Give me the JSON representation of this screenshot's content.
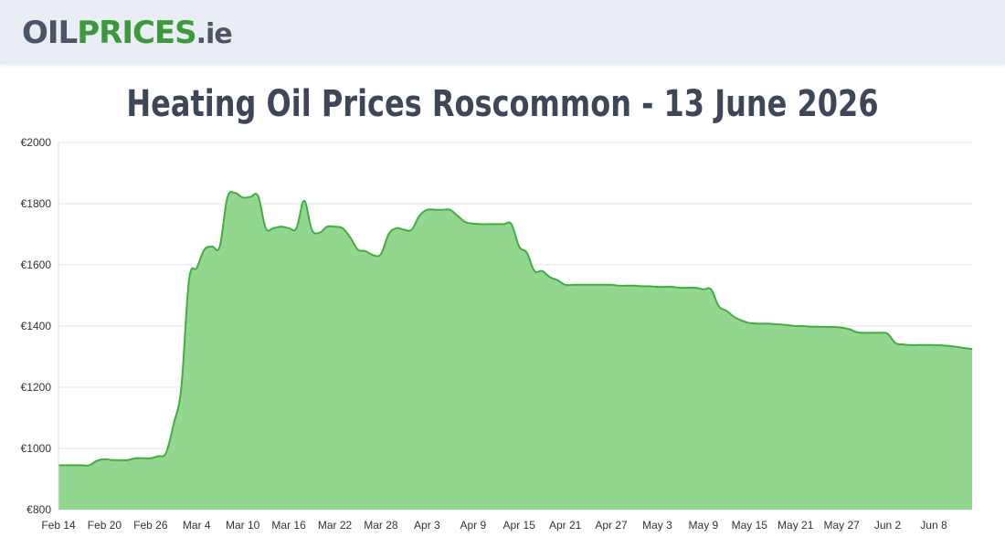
{
  "header": {
    "logo_part1": "OIL",
    "logo_part2": "PRICES",
    "logo_part3": ".ie"
  },
  "colors": {
    "fill": "#92d690",
    "line": "#42ae42",
    "grid": "#e6e6e6"
  },
  "chart_data": {
    "type": "area",
    "title": "Heating Oil Prices Roscommon - 13 June 2026",
    "xlabel": "",
    "ylabel": "",
    "ylim": [
      800,
      2000
    ],
    "y_ticks": [
      800,
      1000,
      1200,
      1400,
      1600,
      1800,
      2000
    ],
    "y_tick_labels": [
      "€800",
      "€1000",
      "€1200",
      "€1400",
      "€1600",
      "€1800",
      "€2000"
    ],
    "x_ticks": [
      "Feb 14",
      "Feb 20",
      "Feb 26",
      "Mar 4",
      "Mar 10",
      "Mar 16",
      "Mar 22",
      "Mar 28",
      "Apr 3",
      "Apr 9",
      "Apr 15",
      "Apr 21",
      "Apr 27",
      "May 3",
      "May 9",
      "May 15",
      "May 21",
      "May 27",
      "Jun 2",
      "Jun 8"
    ],
    "grid": true,
    "x": [
      "Feb 14",
      "Feb 15",
      "Feb 16",
      "Feb 17",
      "Feb 18",
      "Feb 19",
      "Feb 20",
      "Feb 21",
      "Feb 22",
      "Feb 23",
      "Feb 24",
      "Feb 25",
      "Feb 26",
      "Feb 27",
      "Feb 28",
      "Mar 1",
      "Mar 2",
      "Mar 3",
      "Mar 4",
      "Mar 5",
      "Mar 6",
      "Mar 7",
      "Mar 8",
      "Mar 9",
      "Mar 10",
      "Mar 11",
      "Mar 12",
      "Mar 13",
      "Mar 14",
      "Mar 15",
      "Mar 16",
      "Mar 17",
      "Mar 18",
      "Mar 19",
      "Mar 20",
      "Mar 21",
      "Mar 22",
      "Mar 23",
      "Mar 24",
      "Mar 25",
      "Mar 26",
      "Mar 27",
      "Mar 28",
      "Mar 29",
      "Mar 30",
      "Mar 31",
      "Apr 1",
      "Apr 2",
      "Apr 3",
      "Apr 4",
      "Apr 5",
      "Apr 6",
      "Apr 7",
      "Apr 8",
      "Apr 9",
      "Apr 10",
      "Apr 11",
      "Apr 12",
      "Apr 13",
      "Apr 14",
      "Apr 15",
      "Apr 16",
      "Apr 17",
      "Apr 18",
      "Apr 19",
      "Apr 20",
      "Apr 21",
      "Apr 22",
      "Apr 23",
      "Apr 24",
      "Apr 25",
      "Apr 26",
      "Apr 27",
      "Apr 28",
      "Apr 29",
      "Apr 30",
      "May 1",
      "May 2",
      "May 3",
      "May 4",
      "May 5",
      "May 6",
      "May 7",
      "May 8",
      "May 9",
      "May 10",
      "May 11",
      "May 12",
      "May 13",
      "May 14",
      "May 15",
      "May 16",
      "May 17",
      "May 18",
      "May 19",
      "May 20",
      "May 21",
      "May 22",
      "May 23",
      "May 24",
      "May 25",
      "May 26",
      "May 27",
      "May 28",
      "May 29",
      "May 30",
      "May 31",
      "Jun 1",
      "Jun 2",
      "Jun 3",
      "Jun 4",
      "Jun 5",
      "Jun 6",
      "Jun 7",
      "Jun 8",
      "Jun 9",
      "Jun 10",
      "Jun 11",
      "Jun 12",
      "Jun 13"
    ],
    "series": [
      {
        "values": [
          945,
          945,
          945,
          945,
          945,
          960,
          965,
          962,
          962,
          962,
          968,
          968,
          968,
          975,
          985,
          1080,
          1200,
          1550,
          1590,
          1650,
          1660,
          1660,
          1820,
          1835,
          1820,
          1822,
          1825,
          1720,
          1720,
          1725,
          1720,
          1720,
          1810,
          1715,
          1705,
          1725,
          1725,
          1720,
          1690,
          1650,
          1645,
          1632,
          1635,
          1700,
          1720,
          1715,
          1715,
          1760,
          1780,
          1780,
          1780,
          1780,
          1760,
          1740,
          1735,
          1733,
          1733,
          1733,
          1733,
          1733,
          1660,
          1640,
          1580,
          1580,
          1560,
          1550,
          1535,
          1535,
          1535,
          1535,
          1535,
          1535,
          1535,
          1532,
          1532,
          1532,
          1530,
          1530,
          1528,
          1528,
          1528,
          1525,
          1525,
          1525,
          1520,
          1520,
          1465,
          1450,
          1430,
          1418,
          1410,
          1408,
          1408,
          1407,
          1405,
          1403,
          1400,
          1400,
          1398,
          1398,
          1397,
          1397,
          1395,
          1390,
          1380,
          1378,
          1378,
          1378,
          1375,
          1345,
          1340,
          1338,
          1338,
          1338,
          1338,
          1337,
          1335,
          1332,
          1328,
          1325
        ]
      }
    ]
  }
}
